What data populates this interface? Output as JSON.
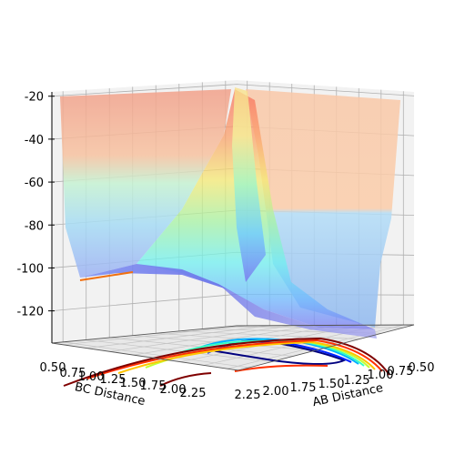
{
  "chart_data": {
    "type": "surface3d",
    "title": "",
    "xlabel": "AB Distance",
    "ylabel": "BC Distance",
    "zlabel": "",
    "x_ticks": [
      "0.50",
      "0.75",
      "1.00",
      "1.25",
      "1.50",
      "1.75",
      "2.00",
      "2.25"
    ],
    "y_ticks": [
      "0.50",
      "0.75",
      "1.00",
      "1.25",
      "1.50",
      "1.75",
      "2.00",
      "2.25"
    ],
    "z_ticks": [
      "-20",
      "-40",
      "-60",
      "-80",
      "-100",
      "-120"
    ],
    "xlim": [
      0.5,
      2.3
    ],
    "ylim": [
      0.5,
      2.3
    ],
    "zlim": [
      -135,
      -18
    ],
    "colormap": "jet",
    "grid": true,
    "surface_z_range": [
      -108,
      -20
    ],
    "minimum_energy_path_floor": -104
  }
}
